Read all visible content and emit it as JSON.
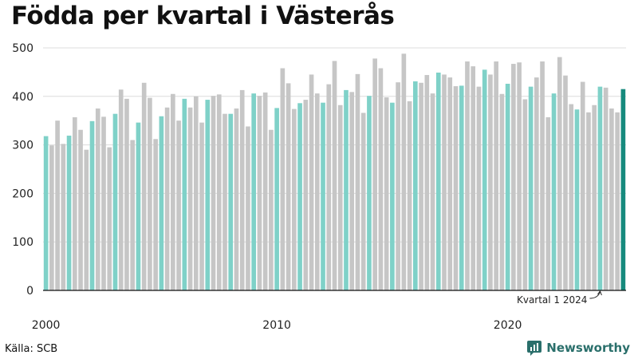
{
  "chart_data": {
    "type": "bar",
    "title": "Födda per kvartal i Västerås",
    "xlabel": "",
    "ylabel": "",
    "ylim": [
      0,
      500
    ],
    "y_ticks": [
      0,
      100,
      200,
      300,
      400,
      500
    ],
    "x_tick_labels": [
      {
        "index": 0,
        "label": "2000"
      },
      {
        "index": 40,
        "label": "2010"
      },
      {
        "index": 80,
        "label": "2020"
      }
    ],
    "start_year": 2000,
    "grid": "horizontal",
    "colors": {
      "q1": "#7fd1c8",
      "other": "#c6c6c6",
      "latest": "#168a7d"
    },
    "values": [
      318,
      299,
      350,
      302,
      319,
      357,
      331,
      290,
      349,
      375,
      358,
      295,
      364,
      414,
      395,
      310,
      346,
      428,
      397,
      312,
      359,
      377,
      405,
      350,
      395,
      377,
      400,
      346,
      393,
      401,
      404,
      364,
      364,
      375,
      413,
      338,
      406,
      401,
      408,
      331,
      376,
      458,
      427,
      374,
      386,
      393,
      445,
      406,
      387,
      425,
      473,
      382,
      413,
      409,
      446,
      366,
      401,
      478,
      458,
      398,
      387,
      429,
      488,
      390,
      431,
      428,
      444,
      406,
      449,
      445,
      439,
      421,
      422,
      472,
      462,
      420,
      455,
      445,
      472,
      405,
      426,
      467,
      470,
      394,
      420,
      439,
      472,
      357,
      406,
      481,
      443,
      384,
      373,
      430,
      367,
      382,
      420,
      418,
      375,
      367,
      415
    ],
    "annotations": [
      {
        "index": 96,
        "text": "Kvartal 1 2024"
      }
    ]
  },
  "footer": {
    "source": "Källa: SCB",
    "brand": "Newsworthy",
    "brand_icon": "newsworthy-logo-icon"
  }
}
